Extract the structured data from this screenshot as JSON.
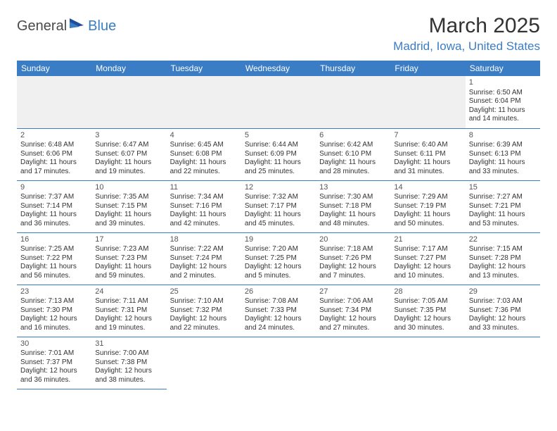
{
  "brand": {
    "general": "General",
    "blue": "Blue"
  },
  "header": {
    "title": "March 2025",
    "location": "Madrid, Iowa, United States"
  },
  "colors": {
    "accent": "#3b7dc4",
    "header_bg": "#3b7dc4",
    "header_text": "#ffffff",
    "blank_bg": "#f0f0f0",
    "text": "#333333"
  },
  "weekdays": [
    "Sunday",
    "Monday",
    "Tuesday",
    "Wednesday",
    "Thursday",
    "Friday",
    "Saturday"
  ],
  "days": [
    {
      "n": "1",
      "sr": "6:50 AM",
      "ss": "6:04 PM",
      "dl": "11 hours and 14 minutes."
    },
    {
      "n": "2",
      "sr": "6:48 AM",
      "ss": "6:06 PM",
      "dl": "11 hours and 17 minutes."
    },
    {
      "n": "3",
      "sr": "6:47 AM",
      "ss": "6:07 PM",
      "dl": "11 hours and 19 minutes."
    },
    {
      "n": "4",
      "sr": "6:45 AM",
      "ss": "6:08 PM",
      "dl": "11 hours and 22 minutes."
    },
    {
      "n": "5",
      "sr": "6:44 AM",
      "ss": "6:09 PM",
      "dl": "11 hours and 25 minutes."
    },
    {
      "n": "6",
      "sr": "6:42 AM",
      "ss": "6:10 PM",
      "dl": "11 hours and 28 minutes."
    },
    {
      "n": "7",
      "sr": "6:40 AM",
      "ss": "6:11 PM",
      "dl": "11 hours and 31 minutes."
    },
    {
      "n": "8",
      "sr": "6:39 AM",
      "ss": "6:13 PM",
      "dl": "11 hours and 33 minutes."
    },
    {
      "n": "9",
      "sr": "7:37 AM",
      "ss": "7:14 PM",
      "dl": "11 hours and 36 minutes."
    },
    {
      "n": "10",
      "sr": "7:35 AM",
      "ss": "7:15 PM",
      "dl": "11 hours and 39 minutes."
    },
    {
      "n": "11",
      "sr": "7:34 AM",
      "ss": "7:16 PM",
      "dl": "11 hours and 42 minutes."
    },
    {
      "n": "12",
      "sr": "7:32 AM",
      "ss": "7:17 PM",
      "dl": "11 hours and 45 minutes."
    },
    {
      "n": "13",
      "sr": "7:30 AM",
      "ss": "7:18 PM",
      "dl": "11 hours and 48 minutes."
    },
    {
      "n": "14",
      "sr": "7:29 AM",
      "ss": "7:19 PM",
      "dl": "11 hours and 50 minutes."
    },
    {
      "n": "15",
      "sr": "7:27 AM",
      "ss": "7:21 PM",
      "dl": "11 hours and 53 minutes."
    },
    {
      "n": "16",
      "sr": "7:25 AM",
      "ss": "7:22 PM",
      "dl": "11 hours and 56 minutes."
    },
    {
      "n": "17",
      "sr": "7:23 AM",
      "ss": "7:23 PM",
      "dl": "11 hours and 59 minutes."
    },
    {
      "n": "18",
      "sr": "7:22 AM",
      "ss": "7:24 PM",
      "dl": "12 hours and 2 minutes."
    },
    {
      "n": "19",
      "sr": "7:20 AM",
      "ss": "7:25 PM",
      "dl": "12 hours and 5 minutes."
    },
    {
      "n": "20",
      "sr": "7:18 AM",
      "ss": "7:26 PM",
      "dl": "12 hours and 7 minutes."
    },
    {
      "n": "21",
      "sr": "7:17 AM",
      "ss": "7:27 PM",
      "dl": "12 hours and 10 minutes."
    },
    {
      "n": "22",
      "sr": "7:15 AM",
      "ss": "7:28 PM",
      "dl": "12 hours and 13 minutes."
    },
    {
      "n": "23",
      "sr": "7:13 AM",
      "ss": "7:30 PM",
      "dl": "12 hours and 16 minutes."
    },
    {
      "n": "24",
      "sr": "7:11 AM",
      "ss": "7:31 PM",
      "dl": "12 hours and 19 minutes."
    },
    {
      "n": "25",
      "sr": "7:10 AM",
      "ss": "7:32 PM",
      "dl": "12 hours and 22 minutes."
    },
    {
      "n": "26",
      "sr": "7:08 AM",
      "ss": "7:33 PM",
      "dl": "12 hours and 24 minutes."
    },
    {
      "n": "27",
      "sr": "7:06 AM",
      "ss": "7:34 PM",
      "dl": "12 hours and 27 minutes."
    },
    {
      "n": "28",
      "sr": "7:05 AM",
      "ss": "7:35 PM",
      "dl": "12 hours and 30 minutes."
    },
    {
      "n": "29",
      "sr": "7:03 AM",
      "ss": "7:36 PM",
      "dl": "12 hours and 33 minutes."
    },
    {
      "n": "30",
      "sr": "7:01 AM",
      "ss": "7:37 PM",
      "dl": "12 hours and 36 minutes."
    },
    {
      "n": "31",
      "sr": "7:00 AM",
      "ss": "7:38 PM",
      "dl": "12 hours and 38 minutes."
    }
  ],
  "labels": {
    "sunrise": "Sunrise: ",
    "sunset": "Sunset: ",
    "daylight": "Daylight: "
  },
  "layout": {
    "leading_blanks": 6,
    "trailing_blanks": 5
  }
}
